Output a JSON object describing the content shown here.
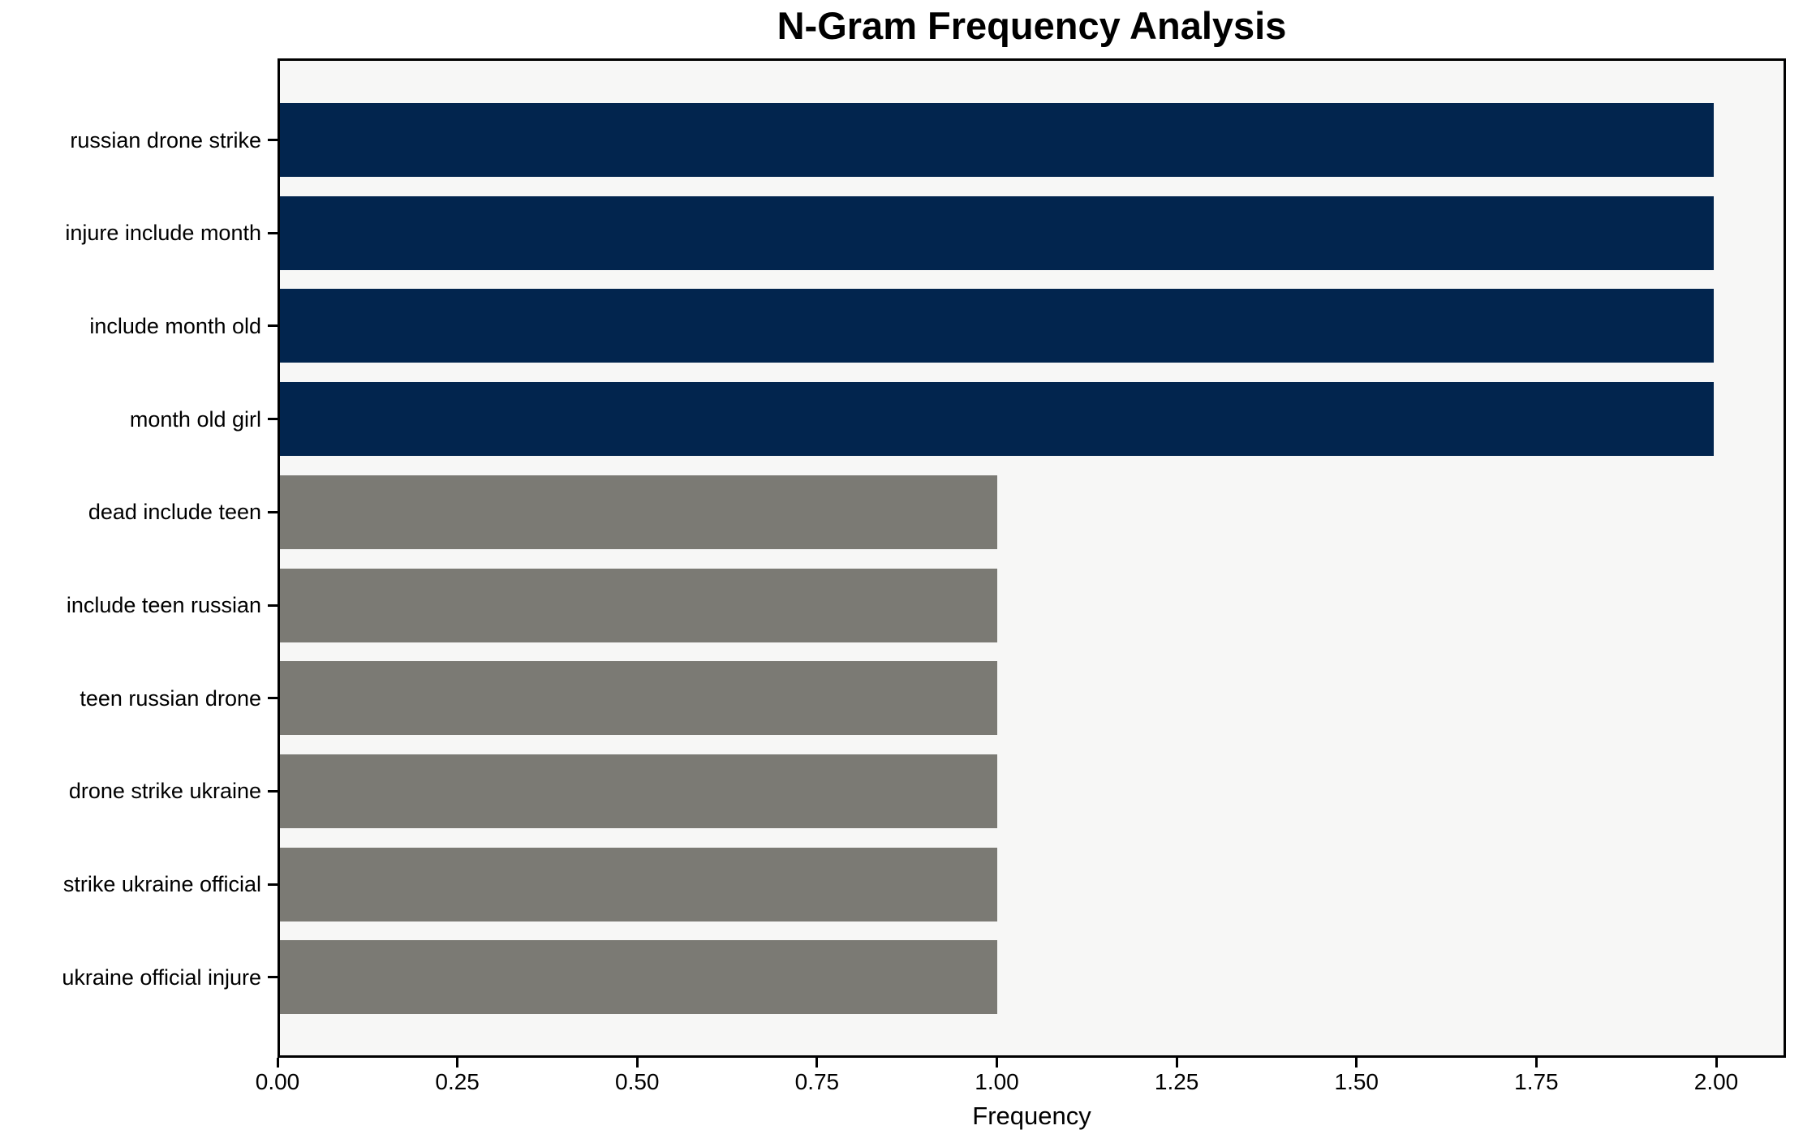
{
  "chart_data": {
    "type": "bar",
    "orientation": "horizontal",
    "title": "N-Gram Frequency Analysis",
    "xlabel": "Frequency",
    "ylabel": "",
    "categories": [
      "russian drone strike",
      "injure include month",
      "include month old",
      "month old girl",
      "dead include teen",
      "include teen russian",
      "teen russian drone",
      "drone strike ukraine",
      "strike ukraine official",
      "ukraine official injure"
    ],
    "values": [
      2,
      2,
      2,
      2,
      1,
      1,
      1,
      1,
      1,
      1
    ],
    "bar_colors": [
      "#02254e",
      "#02254e",
      "#02254e",
      "#02254e",
      "#7b7a74",
      "#7b7a74",
      "#7b7a74",
      "#7b7a74",
      "#7b7a74",
      "#7b7a74"
    ],
    "xlim": [
      0,
      2.097
    ],
    "xticks": [
      0,
      0.25,
      0.5,
      0.75,
      1.0,
      1.25,
      1.5,
      1.75,
      2.0
    ],
    "xtick_labels": [
      "0.00",
      "0.25",
      "0.50",
      "0.75",
      "1.00",
      "1.25",
      "1.50",
      "1.75",
      "2.00"
    ],
    "grid": false,
    "legend": false,
    "colors": {
      "bar_high": "#02254e",
      "bar_low": "#7b7a74",
      "plot_background": "#f7f7f6",
      "figure_background": "#ffffff",
      "axis": "#000000",
      "text": "#000000"
    }
  }
}
